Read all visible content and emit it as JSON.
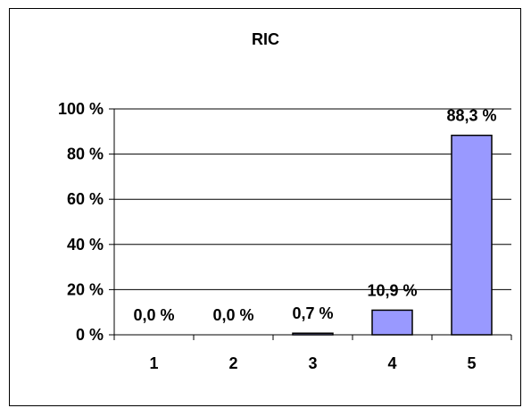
{
  "chart_data": {
    "type": "bar",
    "title": "RIC",
    "categories": [
      "1",
      "2",
      "3",
      "4",
      "5"
    ],
    "values": [
      0.0,
      0.0,
      0.7,
      10.9,
      88.3
    ],
    "value_labels": [
      "0,0 %",
      "0,0 %",
      "0,7 %",
      "10,9 %",
      "88,3 %"
    ],
    "ylim": [
      0,
      100
    ],
    "yticks": [
      0,
      20,
      40,
      60,
      80,
      100
    ],
    "ytick_labels": [
      "0 %",
      "20 %",
      "40 %",
      "60 %",
      "80 %",
      "100 %"
    ],
    "grid": true,
    "legend": "none",
    "colors": {
      "bar": "#9999ff",
      "bar_stroke": "#000000",
      "grid": "#000000"
    }
  }
}
